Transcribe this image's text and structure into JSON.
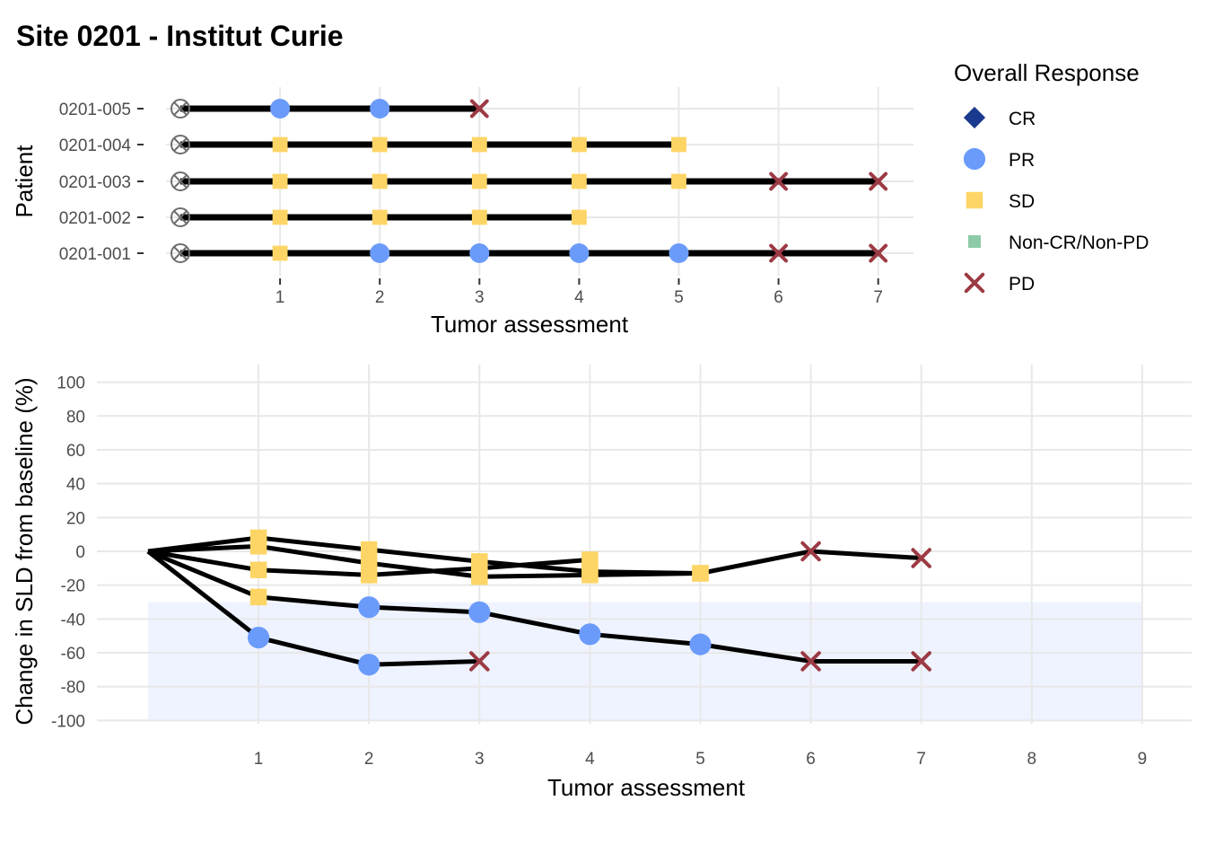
{
  "page": {
    "title": "Site 0201 - Institut Curie"
  },
  "colors": {
    "CR": "#1a3a8f",
    "PR": "#6b9bfa",
    "SD": "#fdd566",
    "Non-CR/Non-PD": "#8fcaa8",
    "PD": "#9c3a44",
    "baseline_marker": "#6e6e6e",
    "grid": "#e8e8e8",
    "response_band": "#eef3ff"
  },
  "chart_data": [
    {
      "type": "swimmer",
      "xlabel": "Tumor assessment",
      "ylabel": "Patient",
      "xticks": [
        1,
        2,
        3,
        4,
        5,
        6,
        7
      ],
      "xlim": [
        0,
        7
      ],
      "baseline_marker": "circle-x",
      "legend": {
        "title": "Overall Response",
        "position": "top-right",
        "entries": [
          {
            "label": "CR",
            "shape": "diamond"
          },
          {
            "label": "PR",
            "shape": "circle"
          },
          {
            "label": "SD",
            "shape": "square"
          },
          {
            "label": "Non-CR/Non-PD",
            "shape": "small-square"
          },
          {
            "label": "PD",
            "shape": "x"
          }
        ]
      },
      "patients": [
        {
          "id": "0201-005",
          "responses": [
            "PR",
            "PR",
            "PD"
          ]
        },
        {
          "id": "0201-004",
          "responses": [
            "SD",
            "SD",
            "SD",
            "SD",
            "SD"
          ]
        },
        {
          "id": "0201-003",
          "responses": [
            "SD",
            "SD",
            "SD",
            "SD",
            "SD",
            "PD",
            "PD"
          ]
        },
        {
          "id": "0201-002",
          "responses": [
            "SD",
            "SD",
            "SD",
            "SD"
          ]
        },
        {
          "id": "0201-001",
          "responses": [
            "SD",
            "PR",
            "PR",
            "PR",
            "PR",
            "PD",
            "PD"
          ]
        }
      ]
    },
    {
      "type": "line",
      "xlabel": "Tumor assessment",
      "ylabel": "Change in SLD from baseline (%)",
      "xticks": [
        1,
        2,
        3,
        4,
        5,
        6,
        7,
        8,
        9
      ],
      "yticks": [
        100,
        80,
        60,
        40,
        20,
        0,
        -20,
        -40,
        -60,
        -80,
        -100
      ],
      "xlim": [
        0,
        9
      ],
      "ylim": [
        -100,
        100
      ],
      "shaded_band": {
        "y_from": -100,
        "y_to": -30
      },
      "series": [
        {
          "patient": "0201-005",
          "points": [
            [
              0,
              0,
              ""
            ],
            [
              1,
              -51,
              "PR"
            ],
            [
              2,
              -67,
              "PR"
            ],
            [
              3,
              -65,
              "PD"
            ]
          ]
        },
        {
          "patient": "0201-004",
          "points": [
            [
              0,
              0,
              ""
            ],
            [
              1,
              3,
              "SD"
            ],
            [
              2,
              -7,
              "SD"
            ],
            [
              3,
              -15,
              "SD"
            ],
            [
              4,
              -14,
              "SD"
            ],
            [
              5,
              -13,
              "SD"
            ]
          ]
        },
        {
          "patient": "0201-003",
          "points": [
            [
              0,
              0,
              ""
            ],
            [
              1,
              8,
              "SD"
            ],
            [
              2,
              1,
              "SD"
            ],
            [
              3,
              -6,
              "SD"
            ],
            [
              4,
              -12,
              "SD"
            ],
            [
              5,
              -13,
              "SD"
            ],
            [
              6,
              0,
              "PD"
            ],
            [
              7,
              -4,
              "PD"
            ]
          ]
        },
        {
          "patient": "0201-002",
          "points": [
            [
              0,
              0,
              ""
            ],
            [
              1,
              -11,
              "SD"
            ],
            [
              2,
              -14,
              "SD"
            ],
            [
              3,
              -10,
              "SD"
            ],
            [
              4,
              -5,
              "SD"
            ]
          ]
        },
        {
          "patient": "0201-001",
          "points": [
            [
              0,
              0,
              ""
            ],
            [
              1,
              -27,
              "SD"
            ],
            [
              2,
              -33,
              "PR"
            ],
            [
              3,
              -36,
              "PR"
            ],
            [
              4,
              -49,
              "PR"
            ],
            [
              5,
              -55,
              "PR"
            ],
            [
              6,
              -65,
              "PD"
            ],
            [
              7,
              -65,
              "PD"
            ]
          ]
        }
      ]
    }
  ]
}
